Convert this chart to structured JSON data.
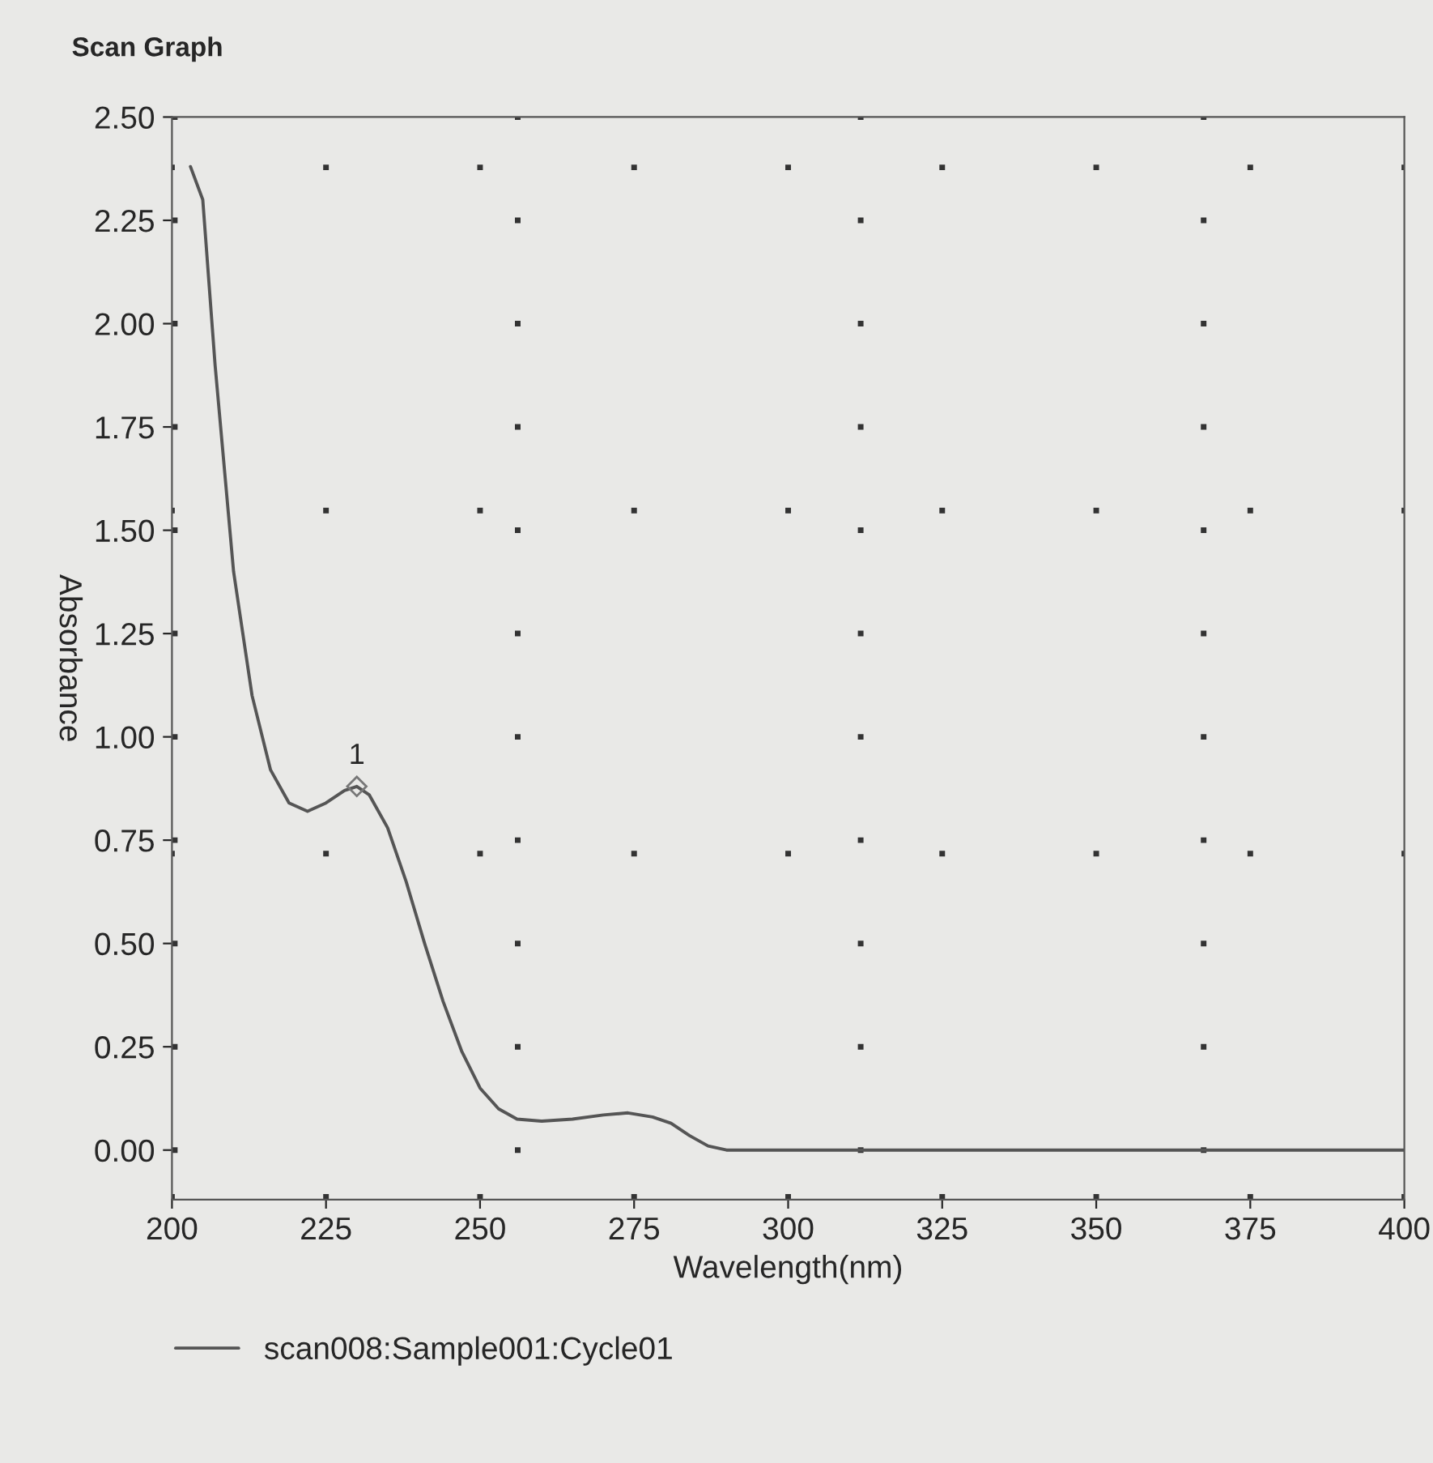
{
  "chart_data": {
    "type": "line",
    "title": "Scan Graph",
    "xlabel": "Wavelength(nm)",
    "ylabel": "Absorbance",
    "x": [
      203,
      205,
      207,
      210,
      213,
      216,
      219,
      222,
      225,
      228,
      230,
      232,
      235,
      238,
      241,
      244,
      247,
      250,
      253,
      256,
      260,
      265,
      270,
      274,
      278,
      281,
      284,
      287,
      290,
      300,
      350,
      400
    ],
    "series": [
      {
        "name": "scan008:Sample001:Cycle01",
        "color": "#555555",
        "values": [
          2.38,
          2.3,
          1.9,
          1.4,
          1.1,
          0.92,
          0.84,
          0.82,
          0.84,
          0.87,
          0.88,
          0.86,
          0.78,
          0.65,
          0.5,
          0.36,
          0.24,
          0.15,
          0.1,
          0.075,
          0.07,
          0.075,
          0.085,
          0.09,
          0.08,
          0.065,
          0.035,
          0.01,
          0.0,
          0.0,
          0.0,
          0.0
        ]
      }
    ],
    "annotations": [
      {
        "text": "1",
        "x": 230,
        "y": 0.88
      }
    ],
    "xlim": [
      200,
      400
    ],
    "xticks": [
      200,
      225,
      250,
      275,
      300,
      325,
      350,
      375,
      400
    ],
    "ylim": [
      -0.12,
      2.5
    ],
    "yticks": [
      {
        "value": 0,
        "label": "0.00"
      },
      {
        "value": 0.25,
        "label": "0.25"
      },
      {
        "value": 0.5,
        "label": "0.50"
      },
      {
        "value": 0.75,
        "label": "0.75"
      },
      {
        "value": 1.0,
        "label": "1.00"
      },
      {
        "value": 1.25,
        "label": "1.25"
      },
      {
        "value": 1.5,
        "label": "1.50"
      },
      {
        "value": 1.75,
        "label": "1.75"
      },
      {
        "value": 2.0,
        "label": "2.00"
      },
      {
        "value": 2.25,
        "label": "2.25"
      },
      {
        "value": 2.5,
        "label": "2.50"
      }
    ],
    "grid": true,
    "legend": "bottom",
    "marker": "none",
    "line_style": "solid"
  }
}
